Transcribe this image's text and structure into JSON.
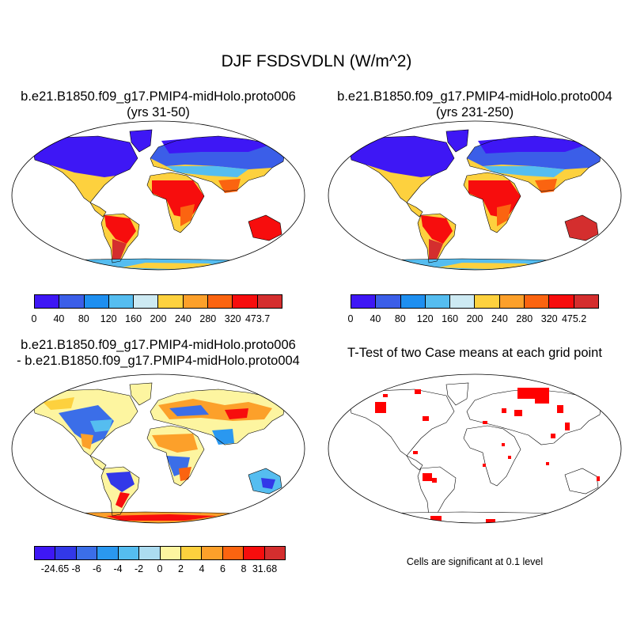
{
  "title": "DJF FSDSVDLN (W/m^2)",
  "panels": {
    "p1": {
      "line1": "b.e21.B1850.f09_g17.PMIP4-midHolo.proto006",
      "line2": "(yrs 31-50)"
    },
    "p2": {
      "line1": "b.e21.B1850.f09_g17.PMIP4-midHolo.proto004",
      "line2": "(yrs 231-250)"
    },
    "p3": {
      "line1": "b.e21.B1850.f09_g17.PMIP4-midHolo.proto006",
      "line2": "- b.e21.B1850.f09_g17.PMIP4-midHolo.proto004"
    },
    "p4": {
      "line1": "T-Test of two Case means at each grid point"
    }
  },
  "colorbars": {
    "cb1": {
      "colors": [
        "#3e17f5",
        "#3b5ee8",
        "#1e8ff0",
        "#55bdf0",
        "#cdeaf3",
        "#fdd13e",
        "#fca02a",
        "#fb6410",
        "#f70d0d",
        "#d42e2e"
      ],
      "labels": [
        "0",
        "40",
        "80",
        "120",
        "160",
        "200",
        "240",
        "280",
        "320",
        "473.7"
      ]
    },
    "cb2": {
      "colors": [
        "#3e17f5",
        "#3b5ee8",
        "#1e8ff0",
        "#55bdf0",
        "#cdeaf3",
        "#fdd13e",
        "#fca02a",
        "#fb6410",
        "#f70d0d",
        "#d42e2e"
      ],
      "labels": [
        "0",
        "40",
        "80",
        "120",
        "160",
        "200",
        "240",
        "280",
        "320",
        "475.2"
      ]
    },
    "cb3": {
      "colors": [
        "#3e17f5",
        "#3238e8",
        "#3b6ee8",
        "#2a98f0",
        "#55bdf0",
        "#acdcf0",
        "#fdf5a0",
        "#fdd13e",
        "#fca02a",
        "#fb6410",
        "#f70d0d",
        "#d42e2e"
      ],
      "labels": [
        "-24.65",
        "-8",
        "-6",
        "-4",
        "-2",
        "0",
        "2",
        "4",
        "6",
        "8",
        "31.68"
      ]
    }
  },
  "note": "Cells are significant at 0.1 level",
  "map_colors": {
    "land_outline": "#000000",
    "significant": "#ff0000",
    "ocean": "#ffffff"
  }
}
